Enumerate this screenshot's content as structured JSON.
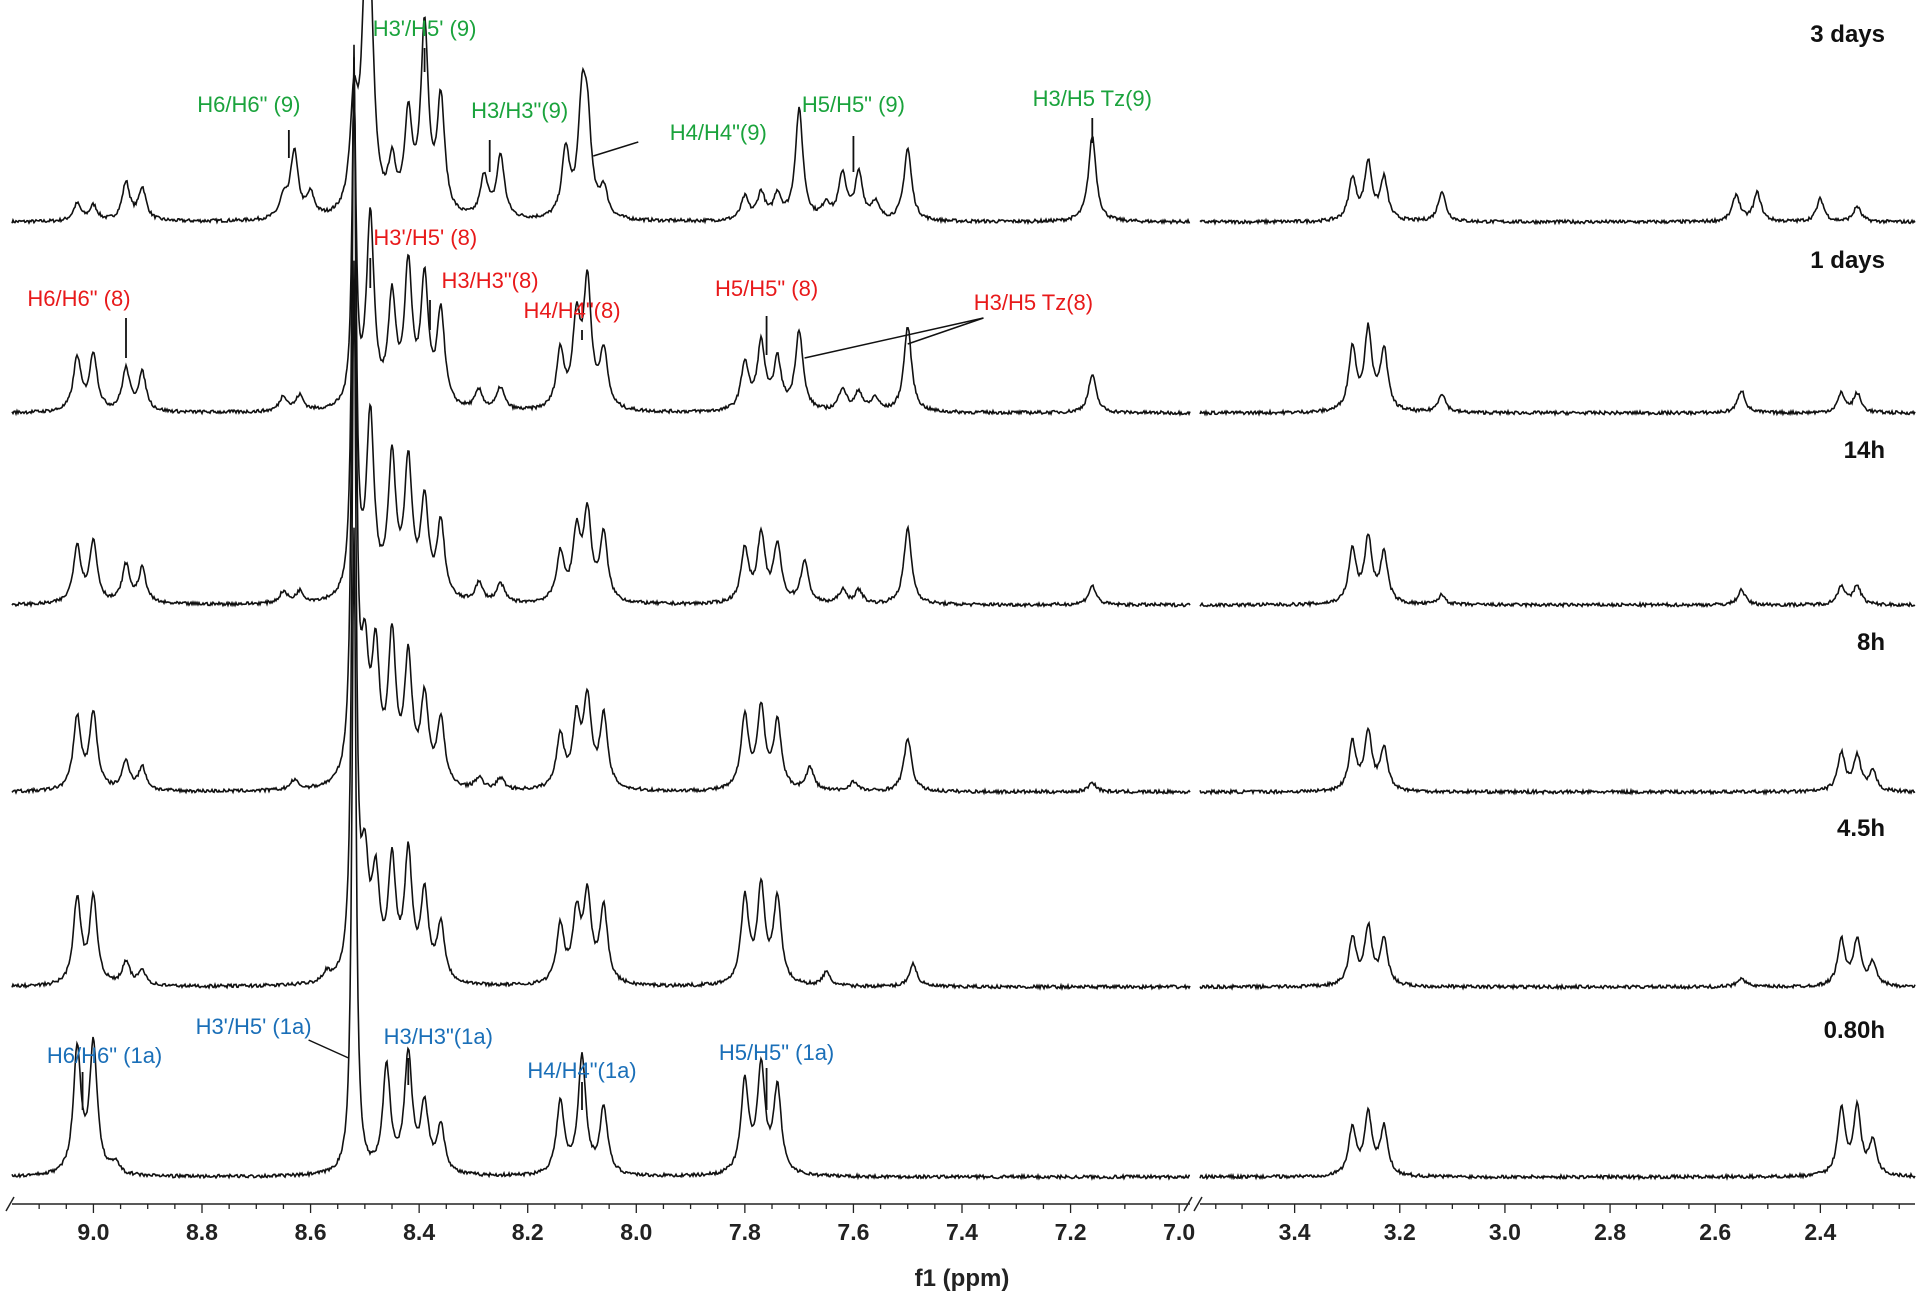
{
  "chart_data": {
    "type": "line",
    "title": "",
    "xlabel": "f1 (ppm)",
    "ylabel": "",
    "x_reversed": true,
    "x_break": true,
    "x_segments": [
      {
        "from": 9.15,
        "to": 6.98,
        "ticks": [
          9.0,
          8.8,
          8.6,
          8.4,
          8.2,
          8.0,
          7.8,
          7.6,
          7.4,
          7.2,
          7.0
        ]
      },
      {
        "from": 3.58,
        "to": 2.22,
        "ticks": [
          3.4,
          3.2,
          3.0,
          2.8,
          2.6,
          2.4
        ]
      }
    ],
    "tick_labels": [
      "9.0",
      "8.8",
      "8.6",
      "8.4",
      "8.2",
      "8.0",
      "7.8",
      "7.6",
      "7.4",
      "7.2",
      "7.0",
      "3.4",
      "3.2",
      "3.0",
      "2.8",
      "2.6",
      "2.4"
    ],
    "grid": false,
    "legend": "none",
    "colors": {
      "spectrum": "#111111",
      "complex_1a": "#1a6fb8",
      "complex_8": "#e8191a",
      "complex_9": "#1aa33c"
    },
    "series": [
      {
        "name": "3 days",
        "peaks": [
          {
            "x": 9.03,
            "h": 0.09
          },
          {
            "x": 9.0,
            "h": 0.08
          },
          {
            "x": 8.94,
            "h": 0.2
          },
          {
            "x": 8.91,
            "h": 0.17
          },
          {
            "x": 8.65,
            "h": 0.1
          },
          {
            "x": 8.63,
            "h": 0.35
          },
          {
            "x": 8.6,
            "h": 0.12
          },
          {
            "x": 8.52,
            "h": 0.55
          },
          {
            "x": 8.5,
            "h": 0.85
          },
          {
            "x": 8.49,
            "h": 0.95
          },
          {
            "x": 8.45,
            "h": 0.25
          },
          {
            "x": 8.42,
            "h": 0.5
          },
          {
            "x": 8.39,
            "h": 0.98
          },
          {
            "x": 8.36,
            "h": 0.6
          },
          {
            "x": 8.28,
            "h": 0.22
          },
          {
            "x": 8.25,
            "h": 0.33
          },
          {
            "x": 8.13,
            "h": 0.35
          },
          {
            "x": 8.1,
            "h": 0.55
          },
          {
            "x": 8.09,
            "h": 0.45
          },
          {
            "x": 8.06,
            "h": 0.15
          },
          {
            "x": 7.8,
            "h": 0.12
          },
          {
            "x": 7.77,
            "h": 0.14
          },
          {
            "x": 7.74,
            "h": 0.13
          },
          {
            "x": 7.7,
            "h": 0.58
          },
          {
            "x": 7.65,
            "h": 0.08
          },
          {
            "x": 7.62,
            "h": 0.24
          },
          {
            "x": 7.59,
            "h": 0.24
          },
          {
            "x": 7.56,
            "h": 0.09
          },
          {
            "x": 7.5,
            "h": 0.38
          },
          {
            "x": 7.16,
            "h": 0.45
          },
          {
            "x": 3.29,
            "h": 0.22
          },
          {
            "x": 3.26,
            "h": 0.3
          },
          {
            "x": 3.23,
            "h": 0.22
          },
          {
            "x": 3.12,
            "h": 0.16
          },
          {
            "x": 2.56,
            "h": 0.14
          },
          {
            "x": 2.52,
            "h": 0.15
          },
          {
            "x": 2.4,
            "h": 0.12
          },
          {
            "x": 2.33,
            "h": 0.08
          }
        ]
      },
      {
        "name": "1 days",
        "peaks": [
          {
            "x": 9.03,
            "h": 0.28
          },
          {
            "x": 9.0,
            "h": 0.3
          },
          {
            "x": 8.94,
            "h": 0.22
          },
          {
            "x": 8.91,
            "h": 0.2
          },
          {
            "x": 8.65,
            "h": 0.08
          },
          {
            "x": 8.62,
            "h": 0.08
          },
          {
            "x": 8.52,
            "h": 1.65
          },
          {
            "x": 8.49,
            "h": 1.0
          },
          {
            "x": 8.45,
            "h": 0.55
          },
          {
            "x": 8.42,
            "h": 0.72
          },
          {
            "x": 8.39,
            "h": 0.65
          },
          {
            "x": 8.36,
            "h": 0.5
          },
          {
            "x": 8.29,
            "h": 0.1
          },
          {
            "x": 8.25,
            "h": 0.12
          },
          {
            "x": 8.14,
            "h": 0.3
          },
          {
            "x": 8.11,
            "h": 0.45
          },
          {
            "x": 8.09,
            "h": 0.65
          },
          {
            "x": 8.06,
            "h": 0.3
          },
          {
            "x": 7.8,
            "h": 0.25
          },
          {
            "x": 7.77,
            "h": 0.35
          },
          {
            "x": 7.74,
            "h": 0.26
          },
          {
            "x": 7.7,
            "h": 0.42
          },
          {
            "x": 7.62,
            "h": 0.12
          },
          {
            "x": 7.59,
            "h": 0.1
          },
          {
            "x": 7.56,
            "h": 0.07
          },
          {
            "x": 7.5,
            "h": 0.45
          },
          {
            "x": 7.16,
            "h": 0.2
          },
          {
            "x": 3.29,
            "h": 0.33
          },
          {
            "x": 3.26,
            "h": 0.42
          },
          {
            "x": 3.23,
            "h": 0.32
          },
          {
            "x": 3.12,
            "h": 0.1
          },
          {
            "x": 2.55,
            "h": 0.12
          },
          {
            "x": 2.36,
            "h": 0.1
          },
          {
            "x": 2.33,
            "h": 0.1
          }
        ]
      },
      {
        "name": "14h",
        "peaks": [
          {
            "x": 9.03,
            "h": 0.3
          },
          {
            "x": 9.0,
            "h": 0.32
          },
          {
            "x": 8.94,
            "h": 0.2
          },
          {
            "x": 8.91,
            "h": 0.18
          },
          {
            "x": 8.65,
            "h": 0.06
          },
          {
            "x": 8.62,
            "h": 0.06
          },
          {
            "x": 8.52,
            "h": 2.8
          },
          {
            "x": 8.49,
            "h": 0.95
          },
          {
            "x": 8.45,
            "h": 0.72
          },
          {
            "x": 8.42,
            "h": 0.7
          },
          {
            "x": 8.39,
            "h": 0.5
          },
          {
            "x": 8.36,
            "h": 0.4
          },
          {
            "x": 8.29,
            "h": 0.1
          },
          {
            "x": 8.25,
            "h": 0.1
          },
          {
            "x": 8.14,
            "h": 0.25
          },
          {
            "x": 8.11,
            "h": 0.35
          },
          {
            "x": 8.09,
            "h": 0.45
          },
          {
            "x": 8.06,
            "h": 0.35
          },
          {
            "x": 7.8,
            "h": 0.28
          },
          {
            "x": 7.77,
            "h": 0.35
          },
          {
            "x": 7.74,
            "h": 0.3
          },
          {
            "x": 7.69,
            "h": 0.22
          },
          {
            "x": 7.62,
            "h": 0.07
          },
          {
            "x": 7.59,
            "h": 0.07
          },
          {
            "x": 7.5,
            "h": 0.4
          },
          {
            "x": 7.16,
            "h": 0.1
          },
          {
            "x": 3.29,
            "h": 0.28
          },
          {
            "x": 3.26,
            "h": 0.34
          },
          {
            "x": 3.23,
            "h": 0.26
          },
          {
            "x": 3.12,
            "h": 0.05
          },
          {
            "x": 2.55,
            "h": 0.08
          },
          {
            "x": 2.36,
            "h": 0.1
          },
          {
            "x": 2.33,
            "h": 0.1
          }
        ]
      },
      {
        "name": "8h",
        "peaks": [
          {
            "x": 9.03,
            "h": 0.38
          },
          {
            "x": 9.0,
            "h": 0.4
          },
          {
            "x": 8.94,
            "h": 0.15
          },
          {
            "x": 8.91,
            "h": 0.12
          },
          {
            "x": 8.63,
            "h": 0.05
          },
          {
            "x": 8.52,
            "h": 3.8
          },
          {
            "x": 8.5,
            "h": 0.6
          },
          {
            "x": 8.48,
            "h": 0.65
          },
          {
            "x": 8.45,
            "h": 0.75
          },
          {
            "x": 8.42,
            "h": 0.65
          },
          {
            "x": 8.39,
            "h": 0.45
          },
          {
            "x": 8.36,
            "h": 0.35
          },
          {
            "x": 8.29,
            "h": 0.06
          },
          {
            "x": 8.25,
            "h": 0.06
          },
          {
            "x": 8.14,
            "h": 0.28
          },
          {
            "x": 8.11,
            "h": 0.35
          },
          {
            "x": 8.09,
            "h": 0.45
          },
          {
            "x": 8.06,
            "h": 0.38
          },
          {
            "x": 7.8,
            "h": 0.38
          },
          {
            "x": 7.77,
            "h": 0.42
          },
          {
            "x": 7.74,
            "h": 0.35
          },
          {
            "x": 7.68,
            "h": 0.12
          },
          {
            "x": 7.6,
            "h": 0.05
          },
          {
            "x": 7.5,
            "h": 0.28
          },
          {
            "x": 7.16,
            "h": 0.05
          },
          {
            "x": 3.29,
            "h": 0.25
          },
          {
            "x": 3.26,
            "h": 0.3
          },
          {
            "x": 3.23,
            "h": 0.22
          },
          {
            "x": 2.36,
            "h": 0.2
          },
          {
            "x": 2.33,
            "h": 0.18
          },
          {
            "x": 2.3,
            "h": 0.1
          }
        ]
      },
      {
        "name": "4.5h",
        "peaks": [
          {
            "x": 9.03,
            "h": 0.45
          },
          {
            "x": 9.0,
            "h": 0.45
          },
          {
            "x": 8.94,
            "h": 0.12
          },
          {
            "x": 8.91,
            "h": 0.08
          },
          {
            "x": 8.57,
            "h": 0.05
          },
          {
            "x": 8.52,
            "h": 3.7
          },
          {
            "x": 8.5,
            "h": 0.55
          },
          {
            "x": 8.48,
            "h": 0.5
          },
          {
            "x": 8.45,
            "h": 0.6
          },
          {
            "x": 8.42,
            "h": 0.65
          },
          {
            "x": 8.39,
            "h": 0.45
          },
          {
            "x": 8.36,
            "h": 0.3
          },
          {
            "x": 8.14,
            "h": 0.3
          },
          {
            "x": 8.11,
            "h": 0.35
          },
          {
            "x": 8.09,
            "h": 0.45
          },
          {
            "x": 8.06,
            "h": 0.4
          },
          {
            "x": 7.8,
            "h": 0.45
          },
          {
            "x": 7.77,
            "h": 0.5
          },
          {
            "x": 7.74,
            "h": 0.45
          },
          {
            "x": 7.65,
            "h": 0.07
          },
          {
            "x": 7.49,
            "h": 0.12
          },
          {
            "x": 3.29,
            "h": 0.25
          },
          {
            "x": 3.26,
            "h": 0.3
          },
          {
            "x": 3.23,
            "h": 0.24
          },
          {
            "x": 2.55,
            "h": 0.05
          },
          {
            "x": 2.36,
            "h": 0.24
          },
          {
            "x": 2.33,
            "h": 0.24
          },
          {
            "x": 2.3,
            "h": 0.12
          }
        ]
      },
      {
        "name": "0.80h",
        "peaks": [
          {
            "x": 9.03,
            "h": 0.65
          },
          {
            "x": 9.0,
            "h": 0.68
          },
          {
            "x": 8.96,
            "h": 0.06
          },
          {
            "x": 8.52,
            "h": 3.4
          },
          {
            "x": 8.46,
            "h": 0.55
          },
          {
            "x": 8.42,
            "h": 0.62
          },
          {
            "x": 8.39,
            "h": 0.35
          },
          {
            "x": 8.36,
            "h": 0.25
          },
          {
            "x": 8.14,
            "h": 0.38
          },
          {
            "x": 8.1,
            "h": 0.62
          },
          {
            "x": 8.06,
            "h": 0.35
          },
          {
            "x": 7.8,
            "h": 0.48
          },
          {
            "x": 7.77,
            "h": 0.55
          },
          {
            "x": 7.74,
            "h": 0.45
          },
          {
            "x": 3.29,
            "h": 0.25
          },
          {
            "x": 3.26,
            "h": 0.32
          },
          {
            "x": 3.23,
            "h": 0.25
          },
          {
            "x": 2.36,
            "h": 0.35
          },
          {
            "x": 2.33,
            "h": 0.35
          },
          {
            "x": 2.3,
            "h": 0.18
          }
        ]
      }
    ],
    "annotations": [
      {
        "text": "H3'/H5' (9)",
        "x": 8.39,
        "group": "complex_9",
        "series": 0
      },
      {
        "text": "H6/H6\" (9)",
        "x": 8.64,
        "group": "complex_9",
        "series": 0
      },
      {
        "text": "H3/H3\"(9)",
        "x": 8.27,
        "group": "complex_9",
        "series": 0
      },
      {
        "text": "H4/H4\"(9)",
        "x": 8.07,
        "group": "complex_9",
        "series": 0
      },
      {
        "text": "H5/H5\" (9)",
        "x": 7.6,
        "group": "complex_9",
        "series": 0
      },
      {
        "text": "H3/H5 Tz(9)",
        "x": 7.16,
        "group": "complex_9",
        "series": 0
      },
      {
        "text": "H3'/H5' (8)",
        "x": 8.49,
        "group": "complex_8",
        "series": 1
      },
      {
        "text": "H6/H6\" (8)",
        "x": 8.94,
        "group": "complex_8",
        "series": 1
      },
      {
        "text": "H3/H3\"(8)",
        "x": 8.38,
        "group": "complex_8",
        "series": 1
      },
      {
        "text": "H4/H4\"(8)",
        "x": 8.1,
        "group": "complex_8",
        "series": 1
      },
      {
        "text": "H5/H5\" (8)",
        "x": 7.76,
        "group": "complex_8",
        "series": 1
      },
      {
        "text": "H3/H5 Tz(8)",
        "x": 7.6,
        "group": "complex_8",
        "series": 1
      },
      {
        "text": "H6/H6\" (1a)",
        "x": 9.02,
        "group": "complex_1a",
        "series": 5
      },
      {
        "text": "H3'/H5' (1a)",
        "x": 8.53,
        "group": "complex_1a",
        "series": 5
      },
      {
        "text": "H3/H3\"(1a)",
        "x": 8.42,
        "group": "complex_1a",
        "series": 5
      },
      {
        "text": "H4/H4\"(1a)",
        "x": 8.1,
        "group": "complex_1a",
        "series": 5
      },
      {
        "text": "H5/H5\" (1a)",
        "x": 7.76,
        "group": "complex_1a",
        "series": 5
      }
    ]
  }
}
